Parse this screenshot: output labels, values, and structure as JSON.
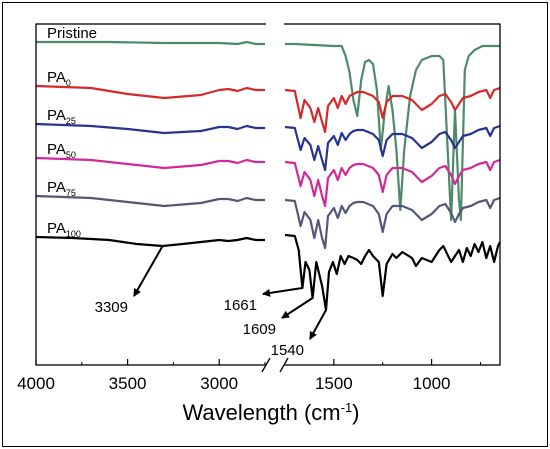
{
  "chart_data": {
    "type": "line",
    "xlabel": "Wavelength (cm",
    "xlabel_sup": "-1",
    "xlabel_end": ")",
    "xlim": [
      4000,
      650
    ],
    "axis_break": [
      2750,
      1750
    ],
    "x_ticks": [
      {
        "value": 4000,
        "label": "4000"
      },
      {
        "value": 3500,
        "label": "3500"
      },
      {
        "value": 3000,
        "label": "3000"
      },
      {
        "value": 1500,
        "label": "1500"
      },
      {
        "value": 1000,
        "label": "1000"
      }
    ],
    "series": [
      {
        "name": "Pristine",
        "base": "Pristine",
        "sub": "",
        "color": "#4e8a6a",
        "points": [
          [
            4000,
            42
          ],
          [
            3600,
            42
          ],
          [
            3300,
            43
          ],
          [
            3000,
            43
          ],
          [
            2900,
            44
          ],
          [
            2850,
            42
          ],
          [
            2800,
            44
          ],
          [
            2750,
            44
          ],
          [
            1750,
            44
          ],
          [
            1700,
            44
          ],
          [
            1500,
            46
          ],
          [
            1460,
            46
          ],
          [
            1440,
            56
          ],
          [
            1420,
            72
          ],
          [
            1400,
            100
          ],
          [
            1380,
            116
          ],
          [
            1360,
            80
          ],
          [
            1340,
            62
          ],
          [
            1320,
            60
          ],
          [
            1300,
            64
          ],
          [
            1280,
            90
          ],
          [
            1260,
            150
          ],
          [
            1240,
            112
          ],
          [
            1220,
            86
          ],
          [
            1200,
            110
          ],
          [
            1180,
            150
          ],
          [
            1160,
            210
          ],
          [
            1140,
            150
          ],
          [
            1110,
            96
          ],
          [
            1080,
            70
          ],
          [
            1050,
            60
          ],
          [
            1000,
            56
          ],
          [
            960,
            56
          ],
          [
            940,
            60
          ],
          [
            920,
            140
          ],
          [
            900,
            220
          ],
          [
            880,
            110
          ],
          [
            860,
            200
          ],
          [
            850,
            220
          ],
          [
            830,
            70
          ],
          [
            810,
            56
          ],
          [
            780,
            50
          ],
          [
            740,
            46
          ],
          [
            700,
            46
          ],
          [
            650,
            46
          ]
        ]
      },
      {
        "name": "PA0",
        "base": "PA",
        "sub": "0",
        "color": "#d42a2a",
        "points": [
          [
            4000,
            86
          ],
          [
            3700,
            88
          ],
          [
            3500,
            94
          ],
          [
            3300,
            98
          ],
          [
            3100,
            95
          ],
          [
            3000,
            90
          ],
          [
            2950,
            89
          ],
          [
            2900,
            91
          ],
          [
            2850,
            88
          ],
          [
            2800,
            90
          ],
          [
            2750,
            90
          ],
          [
            1750,
            90
          ],
          [
            1700,
            91
          ],
          [
            1670,
            118
          ],
          [
            1650,
            100
          ],
          [
            1620,
            108
          ],
          [
            1600,
            122
          ],
          [
            1580,
            108
          ],
          [
            1560,
            122
          ],
          [
            1545,
            132
          ],
          [
            1530,
            106
          ],
          [
            1500,
            98
          ],
          [
            1480,
            108
          ],
          [
            1460,
            96
          ],
          [
            1440,
            104
          ],
          [
            1420,
            96
          ],
          [
            1400,
            94
          ],
          [
            1380,
            92
          ],
          [
            1350,
            92
          ],
          [
            1300,
            96
          ],
          [
            1270,
            102
          ],
          [
            1250,
            118
          ],
          [
            1230,
            102
          ],
          [
            1200,
            96
          ],
          [
            1150,
            96
          ],
          [
            1100,
            100
          ],
          [
            1050,
            110
          ],
          [
            1000,
            104
          ],
          [
            960,
            96
          ],
          [
            930,
            94
          ],
          [
            900,
            102
          ],
          [
            880,
            110
          ],
          [
            860,
            104
          ],
          [
            840,
            98
          ],
          [
            800,
            96
          ],
          [
            760,
            92
          ],
          [
            720,
            90
          ],
          [
            700,
            98
          ],
          [
            680,
            90
          ],
          [
            650,
            88
          ]
        ]
      },
      {
        "name": "PA25",
        "base": "PA",
        "sub": "25",
        "color": "#27348f",
        "points": [
          [
            4000,
            124
          ],
          [
            3700,
            126
          ],
          [
            3500,
            129
          ],
          [
            3300,
            133
          ],
          [
            3100,
            131
          ],
          [
            3000,
            127
          ],
          [
            2950,
            127
          ],
          [
            2900,
            129
          ],
          [
            2850,
            126
          ],
          [
            2800,
            128
          ],
          [
            2750,
            128
          ],
          [
            1750,
            127
          ],
          [
            1700,
            128
          ],
          [
            1670,
            150
          ],
          [
            1650,
            138
          ],
          [
            1620,
            145
          ],
          [
            1600,
            160
          ],
          [
            1580,
            146
          ],
          [
            1560,
            160
          ],
          [
            1545,
            170
          ],
          [
            1530,
            143
          ],
          [
            1500,
            136
          ],
          [
            1480,
            145
          ],
          [
            1460,
            133
          ],
          [
            1440,
            140
          ],
          [
            1420,
            134
          ],
          [
            1400,
            131
          ],
          [
            1380,
            130
          ],
          [
            1350,
            130
          ],
          [
            1300,
            134
          ],
          [
            1270,
            140
          ],
          [
            1250,
            156
          ],
          [
            1230,
            140
          ],
          [
            1200,
            134
          ],
          [
            1150,
            134
          ],
          [
            1100,
            138
          ],
          [
            1050,
            148
          ],
          [
            1000,
            142
          ],
          [
            960,
            134
          ],
          [
            930,
            132
          ],
          [
            900,
            140
          ],
          [
            880,
            148
          ],
          [
            860,
            142
          ],
          [
            840,
            136
          ],
          [
            800,
            134
          ],
          [
            760,
            130
          ],
          [
            720,
            128
          ],
          [
            700,
            136
          ],
          [
            680,
            128
          ],
          [
            650,
            126
          ]
        ]
      },
      {
        "name": "PA50",
        "base": "PA",
        "sub": "50",
        "color": "#cf2a9c",
        "points": [
          [
            4000,
            158
          ],
          [
            3700,
            160
          ],
          [
            3500,
            164
          ],
          [
            3300,
            168
          ],
          [
            3100,
            165
          ],
          [
            3000,
            161
          ],
          [
            2950,
            161
          ],
          [
            2900,
            163
          ],
          [
            2850,
            160
          ],
          [
            2800,
            162
          ],
          [
            2750,
            162
          ],
          [
            1750,
            162
          ],
          [
            1700,
            163
          ],
          [
            1670,
            186
          ],
          [
            1650,
            172
          ],
          [
            1620,
            180
          ],
          [
            1600,
            196
          ],
          [
            1580,
            180
          ],
          [
            1560,
            196
          ],
          [
            1545,
            206
          ],
          [
            1530,
            178
          ],
          [
            1500,
            170
          ],
          [
            1480,
            180
          ],
          [
            1460,
            168
          ],
          [
            1440,
            175
          ],
          [
            1420,
            168
          ],
          [
            1400,
            165
          ],
          [
            1380,
            164
          ],
          [
            1350,
            164
          ],
          [
            1300,
            168
          ],
          [
            1270,
            175
          ],
          [
            1250,
            192
          ],
          [
            1230,
            175
          ],
          [
            1200,
            168
          ],
          [
            1150,
            168
          ],
          [
            1100,
            172
          ],
          [
            1050,
            182
          ],
          [
            1000,
            176
          ],
          [
            960,
            168
          ],
          [
            930,
            166
          ],
          [
            900,
            175
          ],
          [
            880,
            184
          ],
          [
            860,
            176
          ],
          [
            840,
            170
          ],
          [
            800,
            168
          ],
          [
            760,
            164
          ],
          [
            720,
            162
          ],
          [
            700,
            170
          ],
          [
            680,
            162
          ],
          [
            650,
            160
          ]
        ]
      },
      {
        "name": "PA75",
        "base": "PA",
        "sub": "75",
        "color": "#565679",
        "points": [
          [
            4000,
            196
          ],
          [
            3700,
            198
          ],
          [
            3500,
            202
          ],
          [
            3300,
            206
          ],
          [
            3100,
            203
          ],
          [
            3000,
            199
          ],
          [
            2950,
            199
          ],
          [
            2900,
            201
          ],
          [
            2850,
            198
          ],
          [
            2800,
            200
          ],
          [
            2750,
            200
          ],
          [
            1750,
            200
          ],
          [
            1700,
            201
          ],
          [
            1670,
            226
          ],
          [
            1650,
            212
          ],
          [
            1620,
            220
          ],
          [
            1600,
            238
          ],
          [
            1580,
            220
          ],
          [
            1560,
            238
          ],
          [
            1545,
            248
          ],
          [
            1530,
            216
          ],
          [
            1500,
            208
          ],
          [
            1480,
            218
          ],
          [
            1460,
            206
          ],
          [
            1440,
            213
          ],
          [
            1420,
            206
          ],
          [
            1400,
            203
          ],
          [
            1380,
            202
          ],
          [
            1350,
            202
          ],
          [
            1300,
            206
          ],
          [
            1270,
            214
          ],
          [
            1250,
            232
          ],
          [
            1230,
            214
          ],
          [
            1200,
            206
          ],
          [
            1150,
            206
          ],
          [
            1100,
            210
          ],
          [
            1050,
            220
          ],
          [
            1000,
            214
          ],
          [
            960,
            206
          ],
          [
            930,
            204
          ],
          [
            900,
            213
          ],
          [
            880,
            222
          ],
          [
            860,
            214
          ],
          [
            840,
            208
          ],
          [
            800,
            206
          ],
          [
            760,
            202
          ],
          [
            720,
            200
          ],
          [
            700,
            208
          ],
          [
            680,
            200
          ],
          [
            650,
            198
          ]
        ]
      },
      {
        "name": "PA100",
        "base": "PA",
        "sub": "100",
        "color": "#000000",
        "points": [
          [
            4000,
            237
          ],
          [
            3800,
            238
          ],
          [
            3600,
            240
          ],
          [
            3450,
            244
          ],
          [
            3309,
            246
          ],
          [
            3200,
            244
          ],
          [
            3100,
            242
          ],
          [
            3000,
            240
          ],
          [
            2950,
            241
          ],
          [
            2900,
            240
          ],
          [
            2850,
            238
          ],
          [
            2800,
            240
          ],
          [
            2750,
            240
          ],
          [
            1750,
            235
          ],
          [
            1700,
            236
          ],
          [
            1680,
            250
          ],
          [
            1661,
            288
          ],
          [
            1645,
            262
          ],
          [
            1625,
            270
          ],
          [
            1609,
            298
          ],
          [
            1590,
            262
          ],
          [
            1575,
            274
          ],
          [
            1560,
            286
          ],
          [
            1540,
            310
          ],
          [
            1525,
            272
          ],
          [
            1505,
            262
          ],
          [
            1485,
            274
          ],
          [
            1465,
            256
          ],
          [
            1445,
            264
          ],
          [
            1425,
            256
          ],
          [
            1400,
            258
          ],
          [
            1380,
            260
          ],
          [
            1360,
            264
          ],
          [
            1340,
            256
          ],
          [
            1320,
            250
          ],
          [
            1300,
            256
          ],
          [
            1270,
            262
          ],
          [
            1250,
            296
          ],
          [
            1230,
            264
          ],
          [
            1200,
            254
          ],
          [
            1180,
            258
          ],
          [
            1150,
            252
          ],
          [
            1100,
            258
          ],
          [
            1080,
            266
          ],
          [
            1050,
            258
          ],
          [
            1000,
            262
          ],
          [
            960,
            250
          ],
          [
            940,
            246
          ],
          [
            920,
            254
          ],
          [
            900,
            262
          ],
          [
            880,
            256
          ],
          [
            860,
            250
          ],
          [
            840,
            262
          ],
          [
            820,
            248
          ],
          [
            800,
            256
          ],
          [
            780,
            244
          ],
          [
            760,
            252
          ],
          [
            740,
            242
          ],
          [
            720,
            258
          ],
          [
            700,
            246
          ],
          [
            680,
            262
          ],
          [
            660,
            246
          ],
          [
            650,
            242
          ]
        ]
      }
    ],
    "annotations": [
      {
        "text": "3309",
        "x": 3309
      },
      {
        "text": "1661",
        "x": 1661
      },
      {
        "text": "1609",
        "x": 1609
      },
      {
        "text": "1540",
        "x": 1540
      }
    ],
    "grid": false,
    "legend": "none"
  }
}
